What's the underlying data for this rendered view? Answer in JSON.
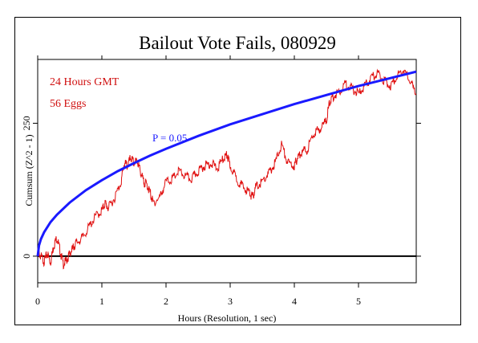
{
  "chart_data": {
    "type": "line",
    "title": "Bailout Vote Fails, 080929",
    "xlabel": "Hours (Resolution, 1 sec)",
    "ylabel": "Cumsum (Z^2 - 1)",
    "xlim": [
      0,
      5.9
    ],
    "ylim": [
      -50,
      370
    ],
    "x_ticks": [
      {
        "value": 0,
        "label": "0"
      },
      {
        "value": 1,
        "label": "1"
      },
      {
        "value": 2,
        "label": "2"
      },
      {
        "value": 3,
        "label": "3"
      },
      {
        "value": 4,
        "label": "4"
      },
      {
        "value": 5,
        "label": "5"
      }
    ],
    "y_ticks": [
      {
        "value": 0,
        "label": "0"
      },
      {
        "value": 250,
        "label": "250"
      }
    ],
    "annotations": {
      "duration": "24 Hours GMT",
      "eggs": "56 Eggs",
      "envelope_label": "P = 0.05"
    },
    "series": [
      {
        "color": "#e01010",
        "x": [
          0,
          0.05,
          0.1,
          0.15,
          0.2,
          0.25,
          0.3,
          0.35,
          0.4,
          0.45,
          0.5,
          0.55,
          0.6,
          0.7,
          0.8,
          0.9,
          1.0,
          1.05,
          1.1,
          1.2,
          1.3,
          1.35,
          1.4,
          1.45,
          1.5,
          1.55,
          1.6,
          1.65,
          1.7,
          1.75,
          1.8,
          1.9,
          2.0,
          2.1,
          2.2,
          2.3,
          2.4,
          2.5,
          2.6,
          2.7,
          2.8,
          2.9,
          2.95,
          3.0,
          3.1,
          3.2,
          3.3,
          3.35,
          3.4,
          3.5,
          3.6,
          3.7,
          3.8,
          3.9,
          4.0,
          4.05,
          4.1,
          4.2,
          4.3,
          4.4,
          4.5,
          4.55,
          4.6,
          4.7,
          4.8,
          4.9,
          5.0,
          5.1,
          5.2,
          5.3,
          5.4,
          5.5,
          5.6,
          5.7,
          5.8,
          5.9
        ],
        "values": [
          8,
          0,
          -10,
          5,
          -12,
          20,
          35,
          10,
          -15,
          -8,
          5,
          15,
          25,
          35,
          55,
          75,
          85,
          100,
          90,
          110,
          140,
          175,
          170,
          185,
          175,
          180,
          160,
          140,
          135,
          120,
          100,
          110,
          140,
          145,
          160,
          150,
          145,
          160,
          170,
          175,
          165,
          185,
          190,
          170,
          145,
          130,
          120,
          110,
          130,
          140,
          155,
          175,
          210,
          175,
          170,
          185,
          195,
          200,
          230,
          240,
          255,
          290,
          300,
          310,
          325,
          315,
          305,
          320,
          335,
          345,
          330,
          320,
          340,
          350,
          330,
          305
        ]
      },
      {
        "name": "P = 0.05",
        "color": "#1a1aff",
        "x": [
          0,
          0.02,
          0.05,
          0.1,
          0.2,
          0.3,
          0.5,
          0.75,
          1.0,
          1.25,
          1.5,
          1.75,
          2.0,
          2.5,
          3.0,
          3.5,
          4.0,
          4.5,
          5.0,
          5.5,
          5.9
        ],
        "values": [
          0,
          20,
          32,
          45,
          64,
          78,
          101,
          124,
          143,
          160,
          175,
          189,
          202,
          226,
          248,
          267,
          286,
          303,
          320,
          335,
          347
        ]
      }
    ]
  }
}
